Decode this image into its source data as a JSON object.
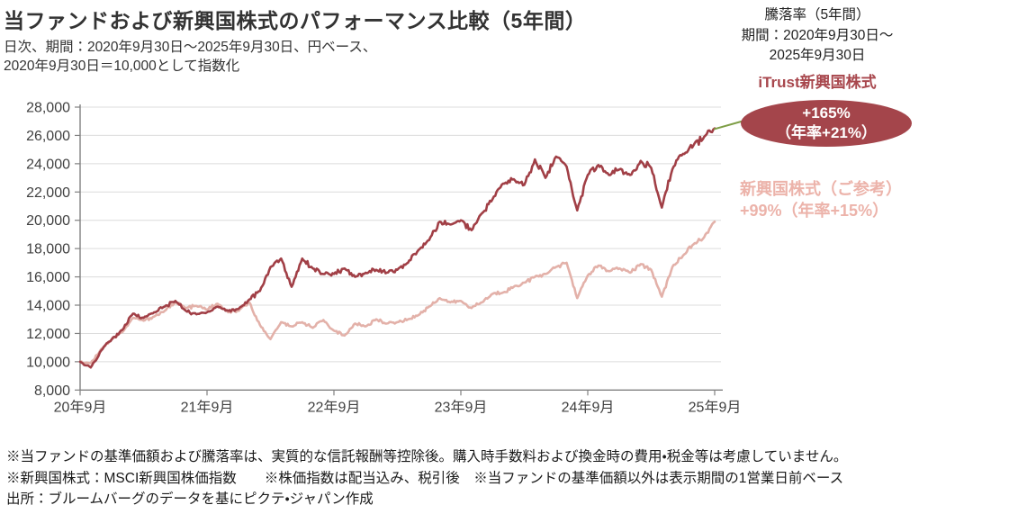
{
  "header": {
    "title": "当ファンドおよび新興国株式のパフォーマンス比較（5年間）",
    "subtitle_line1": "日次、期間：2020年9月30日～2025年9月30日、円ベース、",
    "subtitle_line2": "2020年9月30日＝10,000として指数化"
  },
  "right_panel": {
    "line1": "騰落率（5年間）",
    "line2": "期間：2020年9月30日～",
    "line3": "2025年9月30日",
    "fund_label": "iTrust新興国株式",
    "badge_line1": "+165%",
    "badge_line2": "（年率+21%）",
    "benchmark_label": "新興国株式（ご参考）",
    "benchmark_return": "+99%（年率+15%）"
  },
  "footnotes": {
    "line1": "※当ファンドの基準価額および騰落率は、実質的な信託報酬等控除後。購入時手数料および換金時の費用・税金等は考慮していません。",
    "line2": "※新興国株式：MSCI新興国株価指数　　※株価指数は配当込み、税引後　※当ファンドの基準価額以外は表示期間の1営業日前ベース",
    "line3": "出所：ブルームバーグのデータを基にピクテ・ジャパン作成"
  },
  "colors": {
    "fund_line": "#A13F46",
    "index_line": "#E3B1A9",
    "badge_fill": "#A4454B",
    "badge_text": "#ffffff",
    "benchmark_text": "#ECB3AA",
    "callout_line": "#7E9E46",
    "grid": "#DCDCDC",
    "axis": "#808080",
    "tick_text": "#404040"
  },
  "chart_data": {
    "type": "line",
    "title": "当ファンドおよび新興国株式のパフォーマンス比較（5年間）",
    "xlabel": "",
    "ylabel": "",
    "ylim": [
      8000,
      28000
    ],
    "grid": true,
    "x_start": "2020-09",
    "x_end": "2025-09",
    "x_interval": "monthly",
    "x_tick_labels": [
      "20年9月",
      "21年9月",
      "22年9月",
      "23年9月",
      "24年9月",
      "25年9月"
    ],
    "y_ticks": [
      28000,
      26000,
      24000,
      22000,
      20000,
      18000,
      16000,
      14000,
      12000,
      10000,
      8000
    ],
    "y_tick_labels": [
      "28,000",
      "26,000",
      "24,000",
      "22,000",
      "20,000",
      "18,000",
      "16,000",
      "14,000",
      "12,000",
      "10,000",
      "8,000"
    ],
    "series": [
      {
        "name": "iTrust新興国株式",
        "color": "#A13F46",
        "total_return_pct": 165,
        "annual_return_pct": 21,
        "jitter": 0.011,
        "values": [
          10000,
          9600,
          10800,
          11600,
          12250,
          13400,
          13100,
          13500,
          13900,
          14300,
          13600,
          13350,
          13500,
          13900,
          13600,
          13750,
          14400,
          15000,
          16700,
          17300,
          15300,
          17300,
          16600,
          16200,
          16200,
          16600,
          16000,
          16300,
          16500,
          16300,
          16500,
          17000,
          17900,
          18600,
          19900,
          19700,
          20000,
          19300,
          20500,
          21500,
          22600,
          22900,
          22500,
          24300,
          23000,
          24500,
          23800,
          20700,
          23200,
          23900,
          23200,
          23600,
          23200,
          24200,
          23700,
          20900,
          23600,
          24700,
          25300,
          25900,
          26500
        ]
      },
      {
        "name": "新興国株式（ご参考）",
        "color": "#E3B1A9",
        "total_return_pct": 99,
        "annual_return_pct": 15,
        "jitter": 0.009,
        "values": [
          10000,
          9900,
          10900,
          11600,
          12100,
          13100,
          12900,
          13200,
          13600,
          14200,
          13800,
          13950,
          13700,
          14100,
          13500,
          13600,
          14200,
          12600,
          11600,
          12800,
          12500,
          12800,
          12400,
          12950,
          12200,
          11850,
          12700,
          12500,
          13000,
          12700,
          12800,
          13000,
          13300,
          13900,
          14500,
          14200,
          14300,
          13800,
          14200,
          14800,
          14900,
          15300,
          15600,
          16000,
          16200,
          16700,
          17000,
          14500,
          16100,
          16800,
          16400,
          16600,
          16300,
          16900,
          16500,
          14600,
          16700,
          17500,
          18300,
          18800,
          19900
        ]
      }
    ],
    "callout": {
      "from_series": "iTrust新興国株式",
      "text": "+165%（年率+21%）"
    }
  }
}
